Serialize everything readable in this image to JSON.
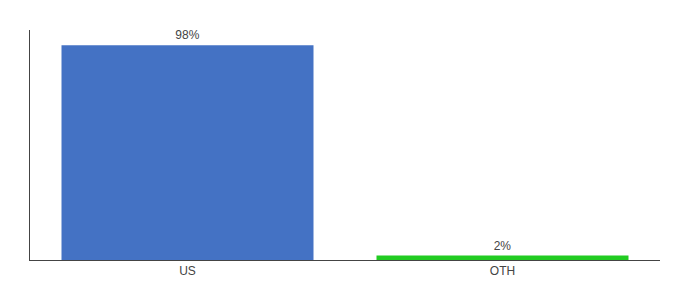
{
  "chart_data": {
    "type": "bar",
    "categories": [
      "US",
      "OTH"
    ],
    "values": [
      98,
      2
    ],
    "value_labels": [
      "98%",
      "2%"
    ],
    "colors": [
      "#4472c4",
      "#22cc22"
    ],
    "ylim": [
      0,
      105
    ],
    "yticks": [],
    "grid": false,
    "data_labels": true,
    "tick_labels": "x"
  }
}
